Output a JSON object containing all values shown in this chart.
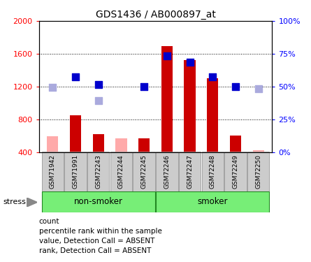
{
  "title": "GDS1436 / AB000897_at",
  "samples": [
    "GSM71942",
    "GSM71991",
    "GSM72243",
    "GSM72244",
    "GSM72245",
    "GSM72246",
    "GSM72247",
    "GSM72248",
    "GSM72249",
    "GSM72250"
  ],
  "bar_values": [
    null,
    850,
    620,
    null,
    570,
    1690,
    1520,
    1300,
    600,
    null
  ],
  "bar_absent_values": [
    590,
    null,
    null,
    570,
    null,
    null,
    null,
    null,
    null,
    420
  ],
  "rank_present": [
    null,
    1320,
    1220,
    null,
    1200,
    1570,
    1500,
    1320,
    1200,
    null
  ],
  "rank_absent": [
    1190,
    null,
    1030,
    null,
    null,
    null,
    null,
    null,
    null,
    1175
  ],
  "left_ylim": [
    400,
    2000
  ],
  "right_ylim": [
    0,
    100
  ],
  "left_yticks": [
    400,
    800,
    1200,
    1600,
    2000
  ],
  "right_yticks": [
    0,
    25,
    50,
    75,
    100
  ],
  "right_yticklabels": [
    "0%",
    "25%",
    "50%",
    "75%",
    "100%"
  ],
  "groups": [
    {
      "label": "non-smoker",
      "start": 0,
      "end": 4
    },
    {
      "label": "smoker",
      "start": 5,
      "end": 9
    }
  ],
  "stress_label": "stress",
  "bar_color_present": "#cc0000",
  "bar_color_absent": "#ffaaaa",
  "rank_color_present": "#0000cc",
  "rank_color_absent": "#aaaadd",
  "group_color": "#77ee77",
  "sample_box_color": "#cccccc",
  "dotted_line_color": "black",
  "bar_width": 0.5,
  "legend_items": [
    {
      "color": "#cc0000",
      "label": "count"
    },
    {
      "color": "#0000cc",
      "label": "percentile rank within the sample"
    },
    {
      "color": "#ffaaaa",
      "label": "value, Detection Call = ABSENT"
    },
    {
      "color": "#aaaadd",
      "label": "rank, Detection Call = ABSENT"
    }
  ]
}
